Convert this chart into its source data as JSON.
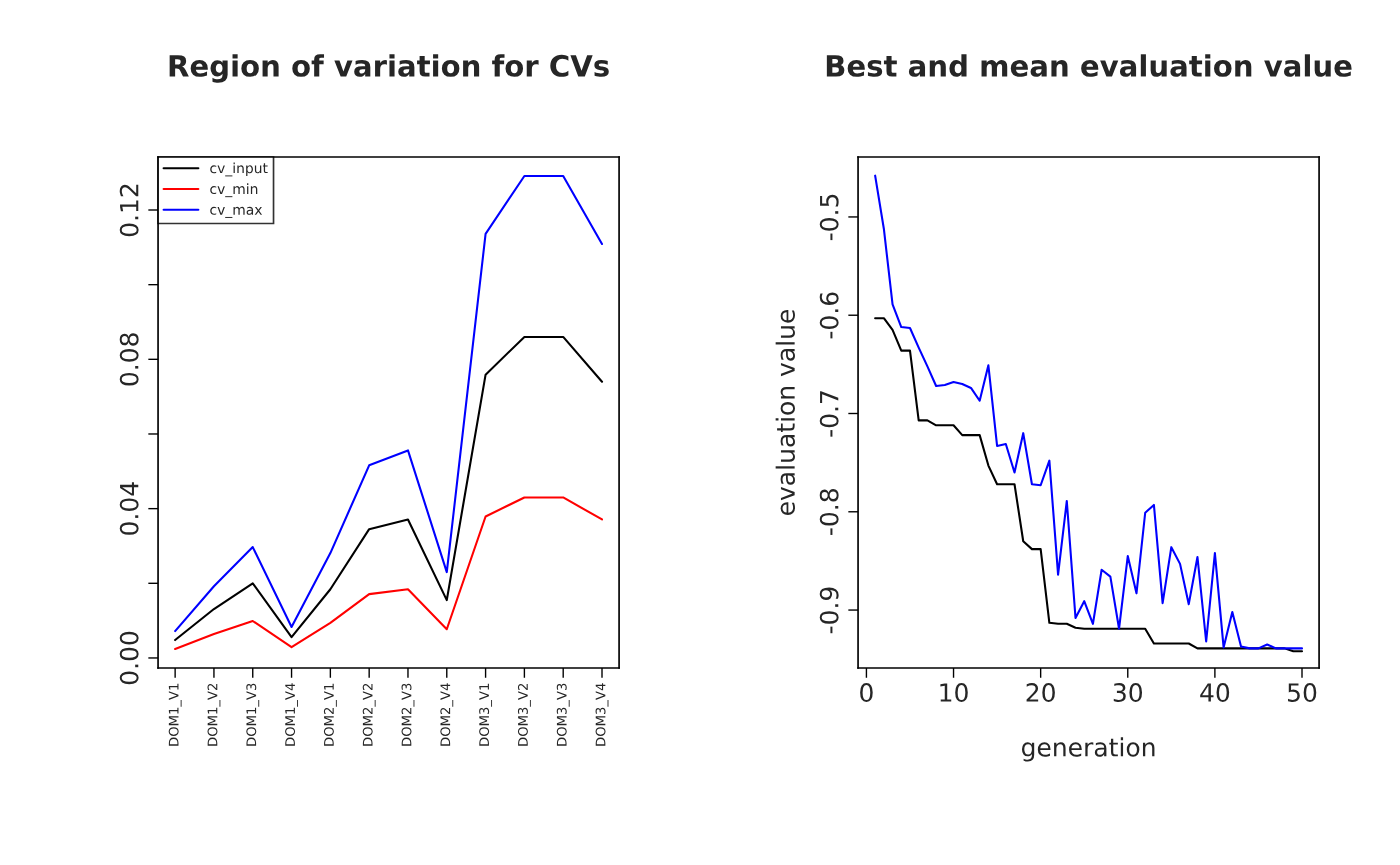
{
  "chart_data": [
    {
      "type": "line",
      "title": "Region of variation for CVs",
      "categories": [
        "DOM1_V1",
        "DOM1_V2",
        "DOM1_V3",
        "DOM1_V4",
        "DOM2_V1",
        "DOM2_V2",
        "DOM2_V3",
        "DOM2_V4",
        "DOM3_V1",
        "DOM3_V2",
        "DOM3_V3",
        "DOM3_V4"
      ],
      "series": [
        {
          "name": "cv_input",
          "color": "#000000",
          "values": [
            0.0048,
            0.0131,
            0.02,
            0.0056,
            0.0184,
            0.0345,
            0.0371,
            0.0155,
            0.0759,
            0.086,
            0.086,
            0.074
          ]
        },
        {
          "name": "cv_min",
          "color": "#ff0000",
          "values": [
            0.0024,
            0.0064,
            0.0099,
            0.0029,
            0.0094,
            0.0171,
            0.0184,
            0.0077,
            0.0379,
            0.043,
            0.043,
            0.0371
          ]
        },
        {
          "name": "cv_max",
          "color": "#0000ff",
          "values": [
            0.0072,
            0.0192,
            0.0297,
            0.0083,
            0.0281,
            0.0516,
            0.0556,
            0.023,
            0.1136,
            0.1291,
            0.1291,
            0.1109
          ]
        }
      ],
      "ylim": [
        -0.0027,
        0.1342
      ],
      "yticks": [
        {
          "value": 0,
          "label": "0.00"
        },
        {
          "value": 0.02,
          "label": null
        },
        {
          "value": 0.04,
          "label": "0.04"
        },
        {
          "value": 0.06,
          "label": null
        },
        {
          "value": 0.08,
          "label": "0.08"
        },
        {
          "value": 0.1,
          "label": null
        },
        {
          "value": 0.12,
          "label": "0.12"
        }
      ],
      "legend": "top left",
      "grid": false,
      "marker": "none",
      "line_style": "solid"
    },
    {
      "type": "line",
      "title": "Best and mean evaluation value",
      "xlabel": "generation",
      "ylabel": "evaluation value",
      "x": [
        1,
        2,
        3,
        4,
        5,
        6,
        7,
        8,
        9,
        10,
        11,
        12,
        13,
        14,
        15,
        16,
        17,
        18,
        19,
        20,
        21,
        22,
        23,
        24,
        25,
        26,
        27,
        28,
        29,
        30,
        31,
        32,
        33,
        34,
        35,
        36,
        37,
        38,
        39,
        40,
        41,
        42,
        43,
        44,
        45,
        46,
        47,
        48,
        49,
        50
      ],
      "series": [
        {
          "color": "#000000",
          "values": [
            -0.603,
            -0.603,
            -0.615,
            -0.636,
            -0.636,
            -0.707,
            -0.707,
            -0.712,
            -0.712,
            -0.712,
            -0.722,
            -0.722,
            -0.722,
            -0.753,
            -0.772,
            -0.772,
            -0.772,
            -0.83,
            -0.838,
            -0.838,
            -0.913,
            -0.914,
            -0.914,
            -0.918,
            -0.919,
            -0.919,
            -0.919,
            -0.919,
            -0.919,
            -0.919,
            -0.919,
            -0.919,
            -0.934,
            -0.934,
            -0.934,
            -0.934,
            -0.934,
            -0.939,
            -0.939,
            -0.939,
            -0.939,
            -0.939,
            -0.939,
            -0.939,
            -0.939,
            -0.939,
            -0.939,
            -0.939,
            -0.942,
            -0.942
          ]
        },
        {
          "color": "#0000ff",
          "values": [
            -0.458,
            -0.512,
            -0.589,
            -0.612,
            -0.613,
            -0.633,
            -0.652,
            -0.672,
            -0.671,
            -0.668,
            -0.67,
            -0.674,
            -0.687,
            -0.651,
            -0.733,
            -0.731,
            -0.76,
            -0.72,
            -0.772,
            -0.773,
            -0.748,
            -0.864,
            -0.789,
            -0.908,
            -0.891,
            -0.914,
            -0.859,
            -0.866,
            -0.919,
            -0.845,
            -0.883,
            -0.801,
            -0.793,
            -0.893,
            -0.836,
            -0.853,
            -0.894,
            -0.846,
            -0.932,
            -0.842,
            -0.938,
            -0.902,
            -0.937,
            -0.939,
            -0.939,
            -0.935,
            -0.939,
            -0.939,
            -0.939,
            -0.939
          ]
        }
      ],
      "xlim": [
        -0.96,
        51.96
      ],
      "xticks": [
        0,
        10,
        20,
        30,
        40,
        50
      ],
      "ylim": [
        -0.959,
        -0.439
      ],
      "yticks": [
        -0.5,
        -0.6,
        -0.7,
        -0.8,
        -0.9
      ],
      "grid": false,
      "marker": "none",
      "line_style": "solid"
    }
  ]
}
